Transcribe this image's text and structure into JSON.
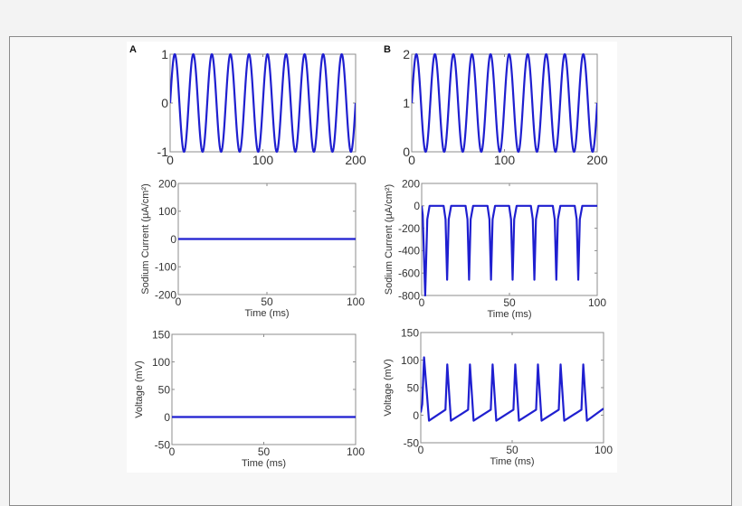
{
  "figure": {
    "panel_labels": [
      "A",
      "B"
    ],
    "line_color": "#1f1fd0",
    "axis_color": "#8c8c8c",
    "text_color": "#333333"
  },
  "chart_data": [
    {
      "panel": "A",
      "type": "line",
      "title": "",
      "xlabel": "",
      "ylabel": "",
      "xlim": [
        0,
        200
      ],
      "ylim": [
        -1,
        1
      ],
      "xticks": [
        0,
        100,
        200
      ],
      "yticks": [
        -1,
        0,
        1
      ],
      "series": [
        {
          "function": "sine",
          "amplitude": 1,
          "offset": 0,
          "period": 20,
          "x_range": [
            0,
            200
          ]
        }
      ]
    },
    {
      "panel": "B",
      "type": "line",
      "title": "",
      "xlabel": "",
      "ylabel": "",
      "xlim": [
        0,
        200
      ],
      "ylim": [
        0,
        2
      ],
      "xticks": [
        0,
        100,
        200
      ],
      "yticks": [
        0,
        1,
        2
      ],
      "series": [
        {
          "function": "sine",
          "amplitude": 1,
          "offset": 1,
          "period": 20,
          "x_range": [
            0,
            200
          ]
        }
      ]
    },
    {
      "panel": "A",
      "type": "line",
      "title": "",
      "xlabel": "Time (ms)",
      "ylabel": "Sodium Current (µA/cm²)",
      "xlim": [
        0,
        100
      ],
      "ylim": [
        -200,
        200
      ],
      "xticks": [
        0,
        50,
        100
      ],
      "yticks": [
        -200,
        -100,
        0,
        100,
        200
      ],
      "series": [
        {
          "x": [
            0,
            100
          ],
          "y": [
            0,
            0
          ]
        }
      ]
    },
    {
      "panel": "B",
      "type": "line",
      "title": "",
      "xlabel": "Time (ms)",
      "ylabel": "Sodium Current (µA/cm²)",
      "xlim": [
        0,
        100
      ],
      "ylim": [
        -800,
        200
      ],
      "xticks": [
        0,
        50,
        100
      ],
      "yticks": [
        -800,
        -600,
        -400,
        -200,
        0,
        200
      ],
      "series": [
        {
          "x": [
            0,
            0.6,
            2,
            3.2,
            4.5,
            12.5,
            13.6,
            14.5,
            15.4,
            16.8,
            25,
            26.1,
            27,
            27.9,
            29.3,
            37.5,
            38.6,
            39.5,
            40.4,
            41.8,
            49.8,
            50.9,
            51.8,
            52.7,
            54.1,
            62.2,
            63.3,
            64.2,
            65.1,
            66.5,
            74.7,
            75.8,
            76.7,
            77.6,
            79,
            87.2,
            88.3,
            89.2,
            90.1,
            91.5,
            100
          ],
          "y": [
            0,
            -80,
            -800,
            -120,
            0,
            0,
            -120,
            -660,
            -120,
            0,
            0,
            -120,
            -660,
            -120,
            0,
            0,
            -120,
            -660,
            -120,
            0,
            0,
            -120,
            -660,
            -120,
            0,
            0,
            -120,
            -660,
            -120,
            0,
            0,
            -120,
            -660,
            -120,
            0,
            0,
            -120,
            -660,
            -120,
            0,
            0
          ]
        }
      ]
    },
    {
      "panel": "A",
      "type": "line",
      "title": "",
      "xlabel": "Time (ms)",
      "ylabel": "Voltage (mV)",
      "xlim": [
        0,
        100
      ],
      "ylim": [
        -50,
        150
      ],
      "xticks": [
        0,
        50,
        100
      ],
      "yticks": [
        -50,
        0,
        50,
        100,
        150
      ],
      "series": [
        {
          "x": [
            0,
            100
          ],
          "y": [
            0,
            0
          ]
        }
      ]
    },
    {
      "panel": "B",
      "type": "line",
      "title": "",
      "xlabel": "Time (ms)",
      "ylabel": "Voltage (mV)",
      "xlim": [
        0,
        100
      ],
      "ylim": [
        -50,
        150
      ],
      "xticks": [
        0,
        50,
        100
      ],
      "yticks": [
        -50,
        0,
        50,
        100,
        150
      ],
      "series": [
        {
          "x": [
            0,
            0.8,
            1.8,
            4.5,
            13.5,
            14.5,
            16.5,
            25.9,
            26.9,
            28.9,
            38.3,
            39.3,
            41.3,
            50.7,
            51.7,
            53.7,
            63.1,
            64.1,
            66.1,
            75.5,
            76.5,
            78.5,
            87.9,
            88.9,
            90.9,
            100
          ],
          "y": [
            5,
            20,
            105,
            -10,
            10,
            92,
            -10,
            10,
            92,
            -10,
            10,
            92,
            -10,
            10,
            92,
            -10,
            10,
            92,
            -10,
            10,
            92,
            -10,
            10,
            92,
            -10,
            12
          ]
        }
      ]
    }
  ]
}
